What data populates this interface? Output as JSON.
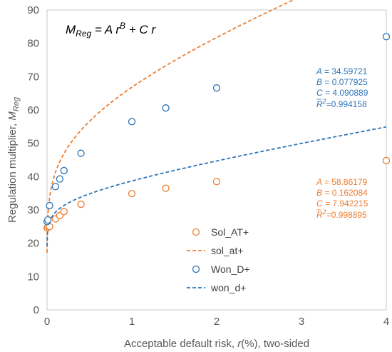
{
  "chart_data": {
    "type": "scatter",
    "xlabel_prefix": "Acceptable default risk, ",
    "xlabel_var": "r",
    "xlabel_suffix": "(%), two-sided",
    "ylabel_prefix": "Regulation multiplier, ",
    "ylabel_var": "M",
    "ylabel_sub": "Reg",
    "xlim": [
      0,
      4
    ],
    "ylim": [
      0,
      90
    ],
    "xticks": [
      0,
      1,
      2,
      3,
      4
    ],
    "yticks": [
      0,
      10,
      20,
      30,
      40,
      50,
      60,
      70,
      80,
      90
    ],
    "grid": false,
    "legend_position": "bottom-center",
    "formula": {
      "lhs": "M",
      "lhs_sub": "Reg",
      "eq": " = A r",
      "exp": "B",
      "rhs": " + C r"
    },
    "series": [
      {
        "name": "Sol_AT+",
        "kind": "points",
        "color": "#ED7D31",
        "x": [
          0.001,
          0.01,
          0.03,
          0.1,
          0.15,
          0.2,
          0.4,
          1.0,
          1.4,
          2.0,
          4.0
        ],
        "y": [
          24.6,
          25.0,
          25.0,
          27.3,
          28.3,
          29.5,
          31.7,
          34.9,
          36.5,
          38.5,
          44.8
        ]
      },
      {
        "name": "sol_at+",
        "kind": "fit",
        "color": "#ED7D31",
        "params": {
          "A": 58.86179,
          "B": 0.162084,
          "C": 7.942215,
          "R2": 0.998895
        }
      },
      {
        "name": "Won_D+",
        "kind": "points",
        "color": "#2E75B6",
        "x": [
          0.001,
          0.01,
          0.03,
          0.1,
          0.15,
          0.2,
          0.4,
          1.0,
          1.4,
          2.0,
          4.0
        ],
        "y": [
          26.5,
          27.0,
          31.3,
          37.0,
          39.3,
          41.8,
          47.0,
          56.5,
          60.6,
          66.6,
          82.0
        ]
      },
      {
        "name": "won_d+",
        "kind": "fit",
        "color": "#2E75B6",
        "params": {
          "A": 34.59721,
          "B": 0.077925,
          "C": 4.090889,
          "R2": 0.994158
        }
      }
    ],
    "annotations": {
      "won": {
        "A": "34.59721",
        "B": "0.077925",
        "C": "4.090889",
        "R2": "0.994158"
      },
      "sol": {
        "A": "58.86179",
        "B": "0.162084",
        "C": "7.942215",
        "R2": "0.998895"
      }
    }
  }
}
